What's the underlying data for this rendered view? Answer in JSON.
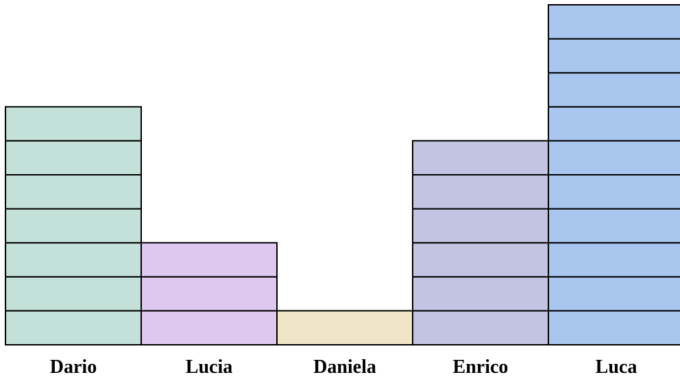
{
  "chart_data": {
    "type": "bar",
    "categories": [
      "Dario",
      "Lucia",
      "Daniela",
      "Enrico",
      "Luca"
    ],
    "values": [
      7,
      3,
      1,
      6,
      10
    ],
    "colors": [
      "#c3e0d9",
      "#dec8f0",
      "#f0e5c6",
      "#c2c4e1",
      "#a9c6ef"
    ],
    "stroke": "#000000",
    "ylim": [
      0,
      10
    ],
    "title": "",
    "xlabel": "",
    "ylabel": ""
  }
}
